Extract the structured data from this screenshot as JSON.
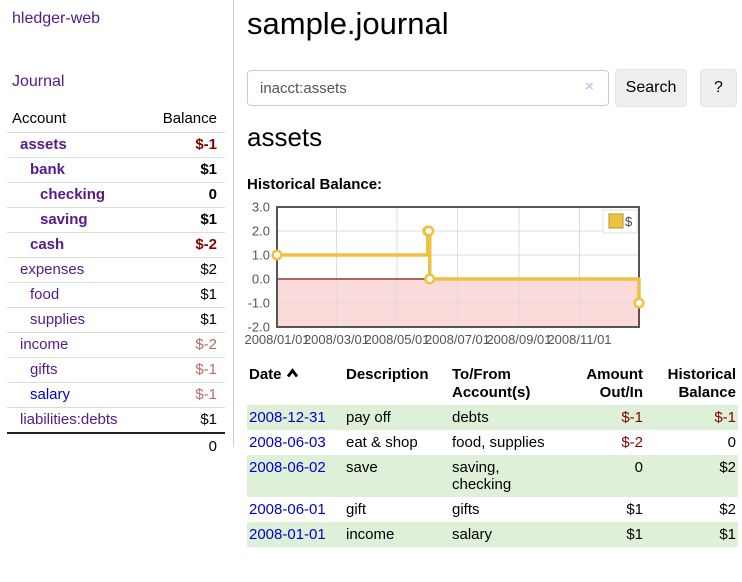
{
  "sidebar": {
    "brand": "hledger-web",
    "journal_link": "Journal",
    "accounts": {
      "headers": {
        "account": "Account",
        "balance": "Balance"
      },
      "rows": [
        {
          "name": "assets",
          "balance": "$-1",
          "indent": 0,
          "emph": true,
          "neg": "strong",
          "link_color": "purple"
        },
        {
          "name": "bank",
          "balance": "$1",
          "indent": 1,
          "emph": true,
          "neg": "none",
          "link_color": "purple"
        },
        {
          "name": "checking",
          "balance": "0",
          "indent": 2,
          "emph": true,
          "neg": "none",
          "link_color": "purple"
        },
        {
          "name": "saving",
          "balance": "$1",
          "indent": 2,
          "emph": true,
          "neg": "none",
          "link_color": "purple"
        },
        {
          "name": "cash",
          "balance": "$-2",
          "indent": 1,
          "emph": true,
          "neg": "strong",
          "link_color": "purple"
        },
        {
          "name": "expenses",
          "balance": "$2",
          "indent": 0,
          "emph": false,
          "neg": "none",
          "link_color": "purple"
        },
        {
          "name": "food",
          "balance": "$1",
          "indent": 1,
          "emph": false,
          "neg": "none",
          "link_color": "purple"
        },
        {
          "name": "supplies",
          "balance": "$1",
          "indent": 1,
          "emph": false,
          "neg": "none",
          "link_color": "purple"
        },
        {
          "name": "income",
          "balance": "$-2",
          "indent": 0,
          "emph": false,
          "neg": "muted",
          "link_color": "purple"
        },
        {
          "name": "gifts",
          "balance": "$-1",
          "indent": 1,
          "emph": false,
          "neg": "muted",
          "link_color": "purple"
        },
        {
          "name": "salary",
          "balance": "$-1",
          "indent": 1,
          "emph": false,
          "neg": "muted",
          "link_color": "blue"
        },
        {
          "name": "liabilities:debts",
          "balance": "$1",
          "indent": 0,
          "emph": false,
          "neg": "none",
          "link_color": "purple"
        }
      ],
      "total": "0"
    }
  },
  "main": {
    "title": "sample.journal",
    "search": {
      "value": "inacct:assets",
      "button": "Search",
      "help": "?"
    },
    "account_heading": "assets",
    "chart_title": "Historical Balance:"
  },
  "icons": {
    "clear": "×",
    "sort_ascending": "chevron-up"
  },
  "chart_data": {
    "type": "line",
    "step": true,
    "title": "Historical Balance",
    "series": [
      {
        "name": "$",
        "color": "#edc240",
        "points": [
          [
            "2008-01-01",
            1
          ],
          [
            "2008-06-01",
            2
          ],
          [
            "2008-06-02",
            2
          ],
          [
            "2008-06-03",
            0
          ],
          [
            "2008-12-31",
            -1
          ]
        ]
      }
    ],
    "x_range": [
      "2008-01-01",
      "2008-12-31"
    ],
    "xticks": [
      {
        "date": "2008-01-01",
        "label": "2008/01/01"
      },
      {
        "date": "2008-03-01",
        "label": "2008/03/01"
      },
      {
        "date": "2008-05-01",
        "label": "2008/05/01"
      },
      {
        "date": "2008-07-01",
        "label": "2008/07/01"
      },
      {
        "date": "2008-09-01",
        "label": "2008/09/01"
      },
      {
        "date": "2008-11-01",
        "label": "2008/11/01"
      }
    ],
    "yticks": [
      "3.0",
      "2.0",
      "1.0",
      "0.0",
      "-1.0",
      "-2.0"
    ],
    "ylim": [
      -2,
      3
    ],
    "grid": true,
    "legend": {
      "label": "$",
      "color": "#edc240",
      "position": "top-right"
    },
    "negative_fill": "#fbdada",
    "zero_line_color": "#8c1414",
    "border_color": "#555555",
    "grid_color": "#dcdcdc",
    "tick_label_color": "#545454"
  },
  "register": {
    "headers": {
      "date": "Date",
      "description": "Description",
      "accounts": "To/From Account(s)",
      "amount": "Amount Out/In",
      "balance": "Historical Balance"
    },
    "rows": [
      {
        "date": "2008-12-31",
        "description": "pay off",
        "accounts": "debts",
        "amount": "$-1",
        "balance": "$-1",
        "amount_neg": true,
        "balance_neg": true,
        "highlight": true
      },
      {
        "date": "2008-06-03",
        "description": "eat & shop",
        "accounts": "food, supplies",
        "amount": "$-2",
        "balance": "0",
        "amount_neg": true,
        "balance_neg": false,
        "highlight": false
      },
      {
        "date": "2008-06-02",
        "description": "save",
        "accounts": "saving, checking",
        "amount": "0",
        "balance": "$2",
        "amount_neg": false,
        "balance_neg": false,
        "highlight": true
      },
      {
        "date": "2008-06-01",
        "description": "gift",
        "accounts": "gifts",
        "amount": "$1",
        "balance": "$2",
        "amount_neg": false,
        "balance_neg": false,
        "highlight": false
      },
      {
        "date": "2008-01-01",
        "description": "income",
        "accounts": "salary",
        "amount": "$1",
        "balance": "$1",
        "amount_neg": false,
        "balance_neg": false,
        "highlight": true
      }
    ]
  },
  "colors": {
    "link_purple": "#551a8b",
    "link_blue": "#0000cc",
    "negative_strong": "#880000",
    "negative_muted": "#b96a6a",
    "row_highlight": "#dff0d8",
    "chart_gold": "#edc240"
  }
}
